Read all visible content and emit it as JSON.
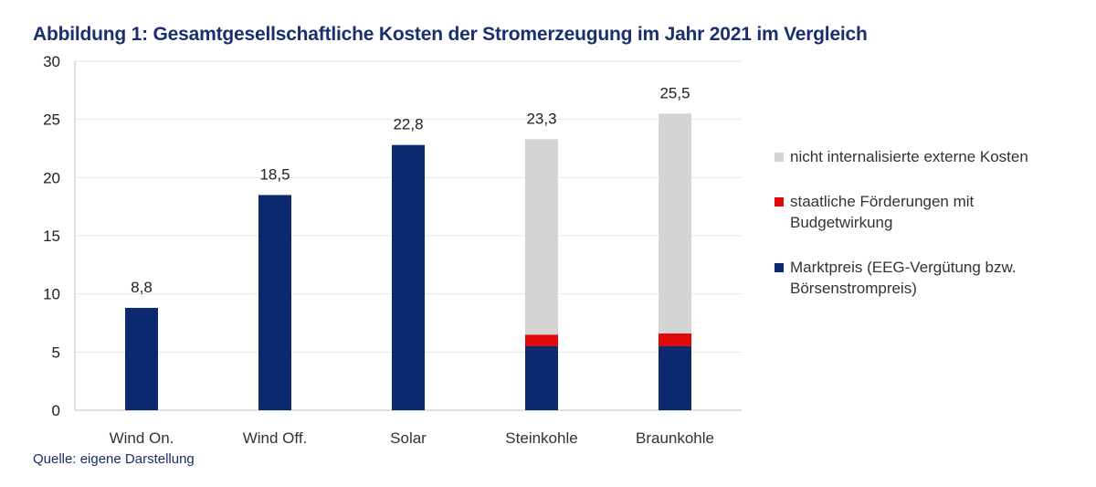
{
  "title": "Abbildung 1: Gesamtgesellschaftliche Kosten der Stromerzeugung im Jahr 2021 im Vergleich",
  "source": "Quelle: eigene Darstellung",
  "colors": {
    "marktpreis": "#0b2a6f",
    "foerderung": "#e10a0a",
    "extern": "#d4d4d4",
    "grid": "#e6e6e6",
    "axis": "#bfbfbf"
  },
  "legend": {
    "items": [
      {
        "key": "extern",
        "label": "nicht internalisierte externe Kosten",
        "color": "#d4d4d4"
      },
      {
        "key": "foerderung",
        "label": "staatliche Förderungen mit Budgetwirkung",
        "color": "#e10a0a"
      },
      {
        "key": "marktpreis",
        "label": "Marktpreis (EEG-Vergütung bzw. Börsenstrompreis)",
        "color": "#0b2a6f"
      }
    ]
  },
  "chart_data": {
    "type": "bar",
    "stacked": true,
    "title": "Abbildung 1: Gesamtgesellschaftliche Kosten der Stromerzeugung im Jahr 2021 im Vergleich",
    "categories": [
      "Wind On.",
      "Wind Off.",
      "Solar",
      "Steinkohle",
      "Braunkohle"
    ],
    "series": [
      {
        "name": "Marktpreis (EEG-Vergütung bzw. Börsenstrompreis)",
        "key": "marktpreis",
        "values": [
          8.8,
          18.5,
          22.8,
          5.5,
          5.5
        ]
      },
      {
        "name": "staatliche Förderungen mit Budgetwirkung",
        "key": "foerderung",
        "values": [
          0,
          0,
          0,
          1.0,
          1.1
        ]
      },
      {
        "name": "nicht internalisierte externe Kosten",
        "key": "extern",
        "values": [
          0,
          0,
          0,
          16.8,
          18.9
        ]
      }
    ],
    "totals": [
      "8,8",
      "18,5",
      "22,8",
      "23,3",
      "25,5"
    ],
    "yticks": [
      "0",
      "5",
      "10",
      "15",
      "20",
      "25",
      "30"
    ],
    "ylim": [
      0,
      30
    ],
    "xlabel": "",
    "ylabel": "",
    "grid": true,
    "legend_position": "right"
  }
}
